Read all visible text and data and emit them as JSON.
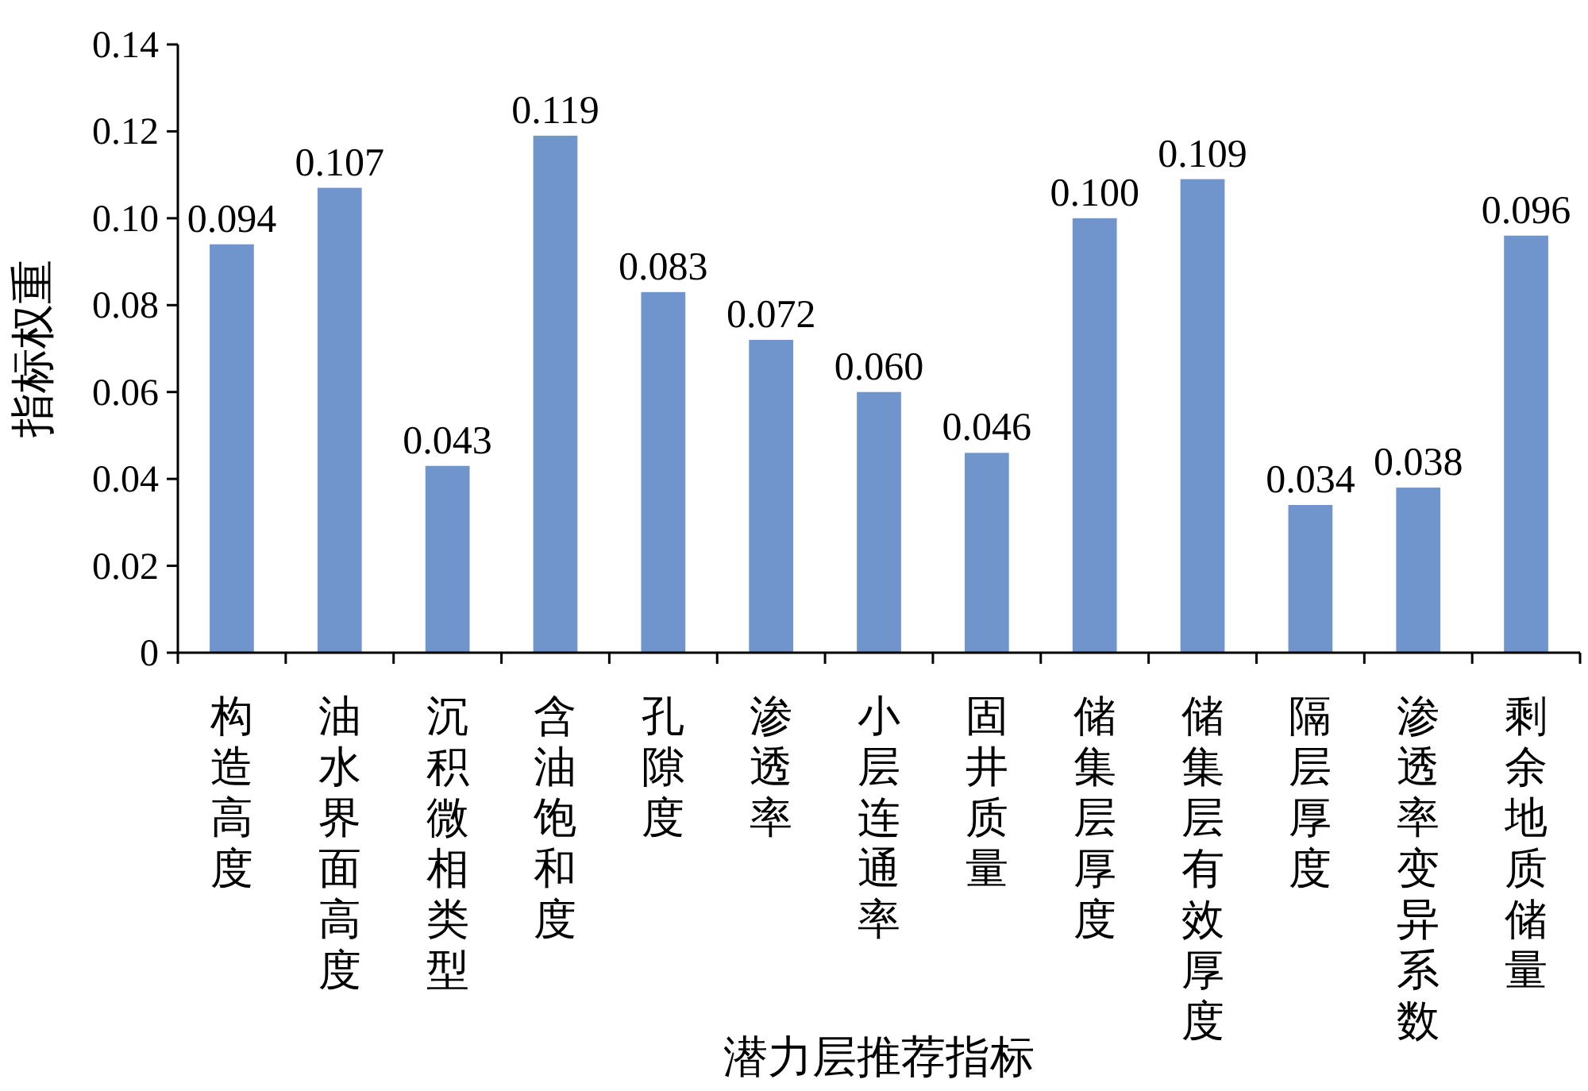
{
  "chart_data": {
    "type": "bar",
    "xlabel": "潜力层推荐指标",
    "ylabel": "指标权重",
    "categories": [
      "构造高度",
      "油水界面高度",
      "沉积微相类型",
      "含油饱和度",
      "孔隙度",
      "渗透率",
      "小层连通率",
      "固井质量",
      "储集层厚度",
      "储集层有效厚度",
      "隔层厚度",
      "渗透率变异系数",
      "剩余地质储量"
    ],
    "values": [
      0.094,
      0.107,
      0.043,
      0.119,
      0.083,
      0.072,
      0.06,
      0.046,
      0.1,
      0.109,
      0.034,
      0.038,
      0.096
    ],
    "value_labels": [
      "0.094",
      "0.107",
      "0.043",
      "0.119",
      "0.083",
      "0.072",
      "0.060",
      "0.046",
      "0.100",
      "0.109",
      "0.034",
      "0.038",
      "0.096"
    ],
    "color": "#7094cc",
    "ylim": [
      0,
      0.14
    ],
    "yticks": [
      0,
      0.02,
      0.04,
      0.06,
      0.08,
      {
        "value": 0.1,
        "label": "0.10"
      },
      0.12,
      0.14
    ],
    "grid": false
  }
}
